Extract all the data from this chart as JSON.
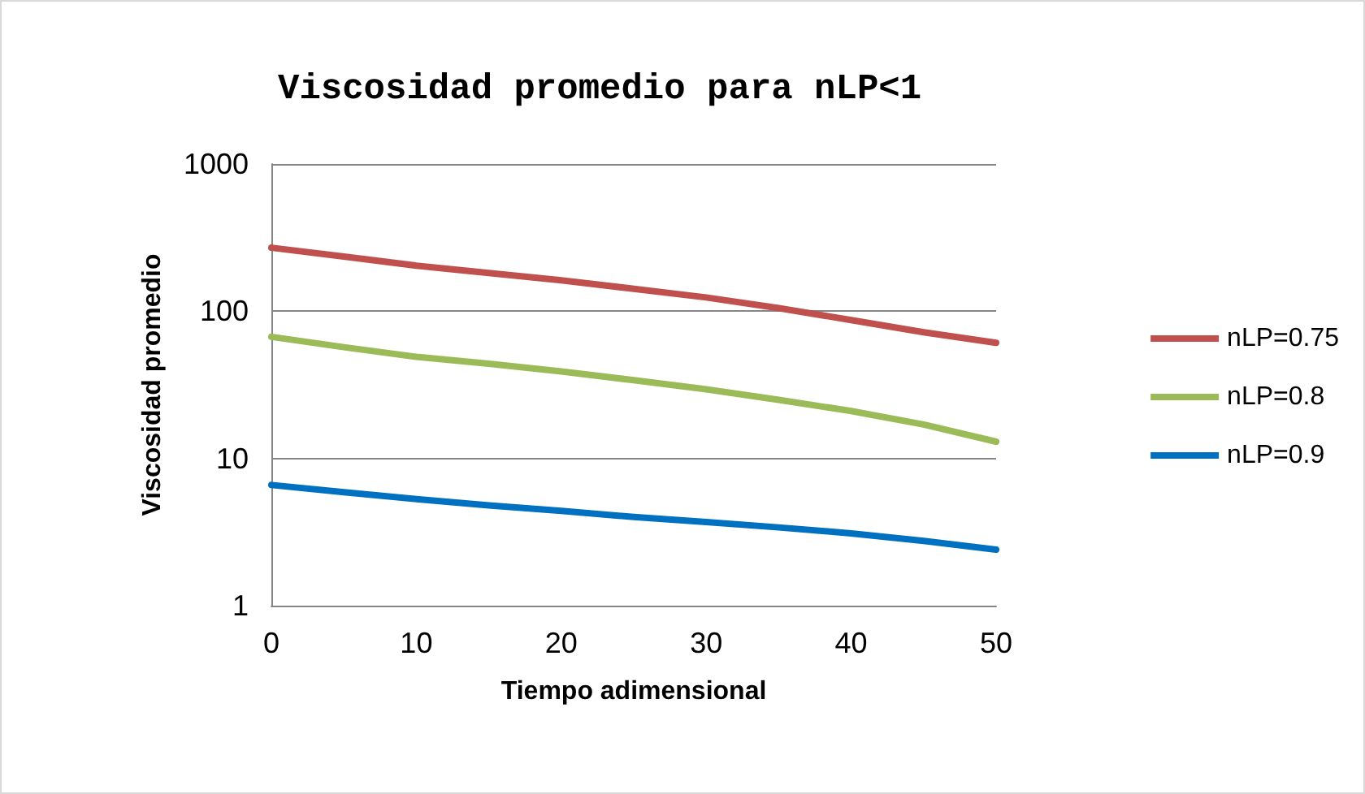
{
  "chart_data": {
    "type": "line",
    "title": "Viscosidad promedio para nLP<1",
    "xlabel": "Tiempo adimensional",
    "ylabel": "Viscosidad promedio",
    "x": [
      0,
      5,
      10,
      15,
      20,
      25,
      30,
      35,
      40,
      45,
      50
    ],
    "series": [
      {
        "name": "nLP=0.75",
        "color": "#c0504d",
        "values": [
          270,
          235,
          204,
          182,
          162,
          142,
          124,
          105,
          87,
          72,
          61
        ]
      },
      {
        "name": "nLP=0.8",
        "color": "#9bbb59",
        "values": [
          67,
          57,
          49,
          44,
          39,
          34,
          29.5,
          25,
          21,
          17,
          13
        ]
      },
      {
        "name": "nLP=0.9",
        "color": "#0070c0",
        "values": [
          6.6,
          5.9,
          5.3,
          4.8,
          4.4,
          4.0,
          3.7,
          3.4,
          3.1,
          2.75,
          2.4
        ]
      }
    ],
    "xlim": [
      0,
      50
    ],
    "xticks": [
      0,
      10,
      20,
      30,
      40,
      50
    ],
    "ylim": [
      1,
      1000
    ],
    "yticks": [
      1,
      10,
      100,
      1000
    ],
    "log": "y",
    "grid": "y",
    "legend": "right",
    "marker": "none",
    "line_style": "solid"
  }
}
